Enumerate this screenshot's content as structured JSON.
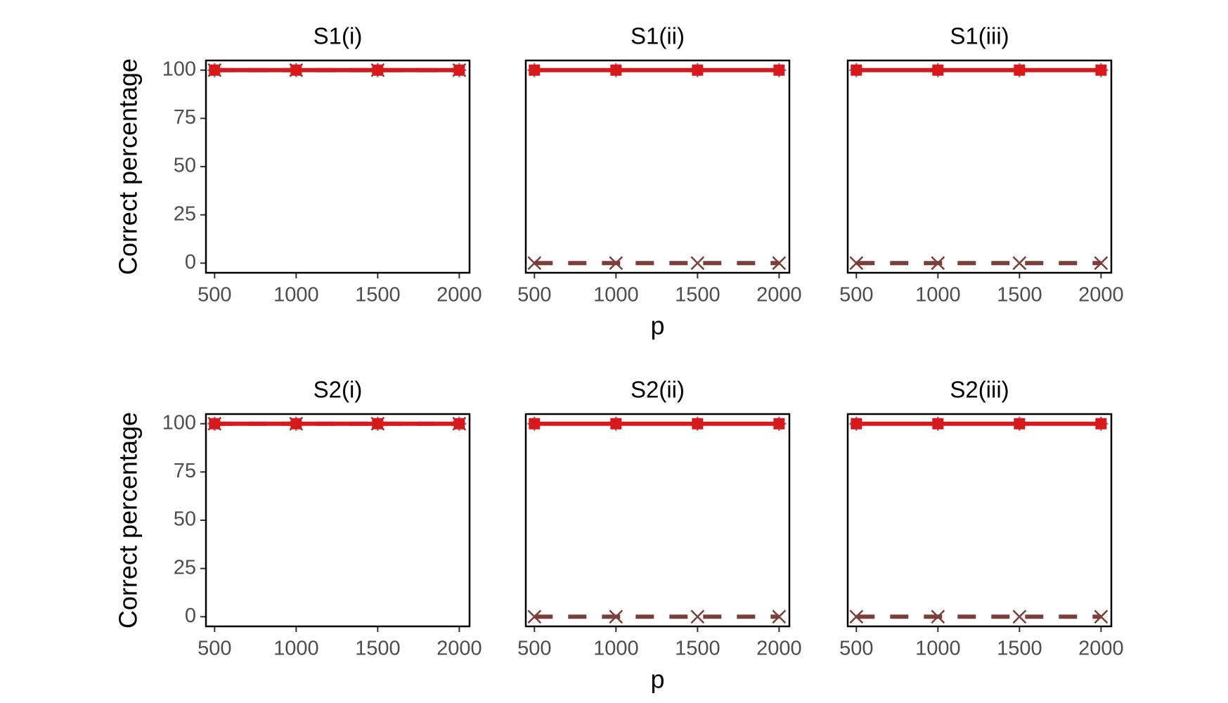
{
  "chart_data": [
    {
      "type": "line",
      "title": "S1(i)",
      "y_label": "Correct percentage",
      "x": [
        500,
        1000,
        1500,
        2000
      ],
      "xlim": [
        447,
        2063
      ],
      "xticks": [
        500,
        1000,
        1500,
        2000
      ],
      "ylim": [
        -5,
        105
      ],
      "yticks": [
        0,
        25,
        50,
        75,
        100
      ],
      "series": [
        {
          "color": "#7b3f3a",
          "marker": "x",
          "dash": "dashed",
          "values": [
            100,
            100,
            100,
            100
          ]
        },
        {
          "color": "#9467bd",
          "marker": "plus",
          "dash": "dotted",
          "values": [
            100,
            100,
            100,
            100
          ]
        },
        {
          "color": "#d7191c",
          "marker": "square",
          "dash": "solid",
          "values": [
            100,
            100,
            100,
            100
          ]
        }
      ]
    },
    {
      "type": "line",
      "title": "S1(ii)",
      "x_label": "p",
      "x": [
        500,
        1000,
        1500,
        2000
      ],
      "xlim": [
        447,
        2063
      ],
      "xticks": [
        500,
        1000,
        1500,
        2000
      ],
      "ylim": [
        -5,
        105
      ],
      "series": [
        {
          "color": "#7b3f3a",
          "marker": "x",
          "dash": "dashed",
          "values": [
            0,
            0,
            0,
            0
          ]
        },
        {
          "color": "#9467bd",
          "marker": "plus",
          "dash": "dotted",
          "values": [
            100,
            100,
            100,
            100
          ]
        },
        {
          "color": "#d7191c",
          "marker": "square",
          "dash": "solid",
          "values": [
            100,
            100,
            100,
            100
          ]
        }
      ]
    },
    {
      "type": "line",
      "title": "S1(iii)",
      "x": [
        500,
        1000,
        1500,
        2000
      ],
      "xlim": [
        447,
        2063
      ],
      "xticks": [
        500,
        1000,
        1500,
        2000
      ],
      "ylim": [
        -5,
        105
      ],
      "series": [
        {
          "color": "#7b3f3a",
          "marker": "x",
          "dash": "dashed",
          "values": [
            0,
            0,
            0,
            0
          ]
        },
        {
          "color": "#9467bd",
          "marker": "plus",
          "dash": "dotted",
          "values": [
            100,
            100,
            100,
            100
          ]
        },
        {
          "color": "#d7191c",
          "marker": "square",
          "dash": "solid",
          "values": [
            100,
            100,
            100,
            100
          ]
        }
      ]
    },
    {
      "type": "line",
      "title": "S2(i)",
      "y_label": "Correct percentage",
      "x": [
        500,
        1000,
        1500,
        2000
      ],
      "xlim": [
        447,
        2063
      ],
      "xticks": [
        500,
        1000,
        1500,
        2000
      ],
      "ylim": [
        -5,
        105
      ],
      "yticks": [
        0,
        25,
        50,
        75,
        100
      ],
      "series": [
        {
          "color": "#7b3f3a",
          "marker": "x",
          "dash": "dashed",
          "values": [
            100,
            100,
            100,
            100
          ]
        },
        {
          "color": "#9467bd",
          "marker": "plus",
          "dash": "dotted",
          "values": [
            100,
            100,
            100,
            100
          ]
        },
        {
          "color": "#d7191c",
          "marker": "square",
          "dash": "solid",
          "values": [
            100,
            100,
            100,
            100
          ]
        }
      ]
    },
    {
      "type": "line",
      "title": "S2(ii)",
      "x_label": "p",
      "x": [
        500,
        1000,
        1500,
        2000
      ],
      "xlim": [
        447,
        2063
      ],
      "xticks": [
        500,
        1000,
        1500,
        2000
      ],
      "ylim": [
        -5,
        105
      ],
      "series": [
        {
          "color": "#7b3f3a",
          "marker": "x",
          "dash": "dashed",
          "values": [
            0,
            0,
            0,
            0
          ]
        },
        {
          "color": "#9467bd",
          "marker": "plus",
          "dash": "dotted",
          "values": [
            100,
            100,
            100,
            100
          ]
        },
        {
          "color": "#d7191c",
          "marker": "square",
          "dash": "solid",
          "values": [
            100,
            100,
            100,
            100
          ]
        }
      ]
    },
    {
      "type": "line",
      "title": "S2(iii)",
      "x": [
        500,
        1000,
        1500,
        2000
      ],
      "xlim": [
        447,
        2063
      ],
      "xticks": [
        500,
        1000,
        1500,
        2000
      ],
      "ylim": [
        -5,
        105
      ],
      "series": [
        {
          "color": "#7b3f3a",
          "marker": "x",
          "dash": "dashed",
          "values": [
            0,
            0,
            0,
            0
          ]
        },
        {
          "color": "#9467bd",
          "marker": "plus",
          "dash": "dotted",
          "values": [
            100,
            100,
            100,
            100
          ]
        },
        {
          "color": "#d7191c",
          "marker": "square",
          "dash": "solid",
          "values": [
            100,
            100,
            100,
            100
          ]
        }
      ]
    }
  ]
}
